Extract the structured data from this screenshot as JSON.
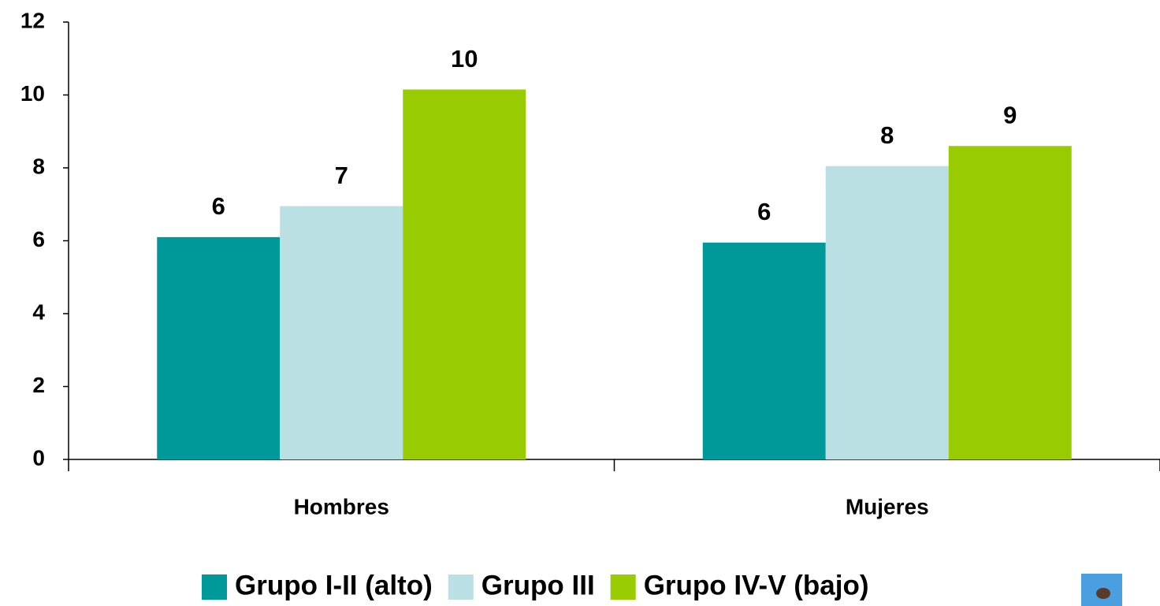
{
  "chart_data": {
    "type": "bar",
    "categories": [
      "Hombres",
      "Mujeres"
    ],
    "series": [
      {
        "name": "Grupo I-II (alto)",
        "color": "#009999",
        "values": [
          6.1,
          5.95
        ],
        "value_labels": [
          "6",
          "6"
        ]
      },
      {
        "name": "Grupo III",
        "color": "#bbe0e3",
        "values": [
          6.95,
          8.05
        ],
        "value_labels": [
          "7",
          "8"
        ]
      },
      {
        "name": "Grupo IV-V (bajo)",
        "color": "#99cc00",
        "values": [
          10.15,
          8.6
        ],
        "value_labels": [
          "10",
          "9"
        ]
      }
    ],
    "ylim": [
      0,
      12
    ],
    "yticks": [
      0,
      2,
      4,
      6,
      8,
      10,
      12
    ],
    "grid": false,
    "legend": "bottom"
  }
}
